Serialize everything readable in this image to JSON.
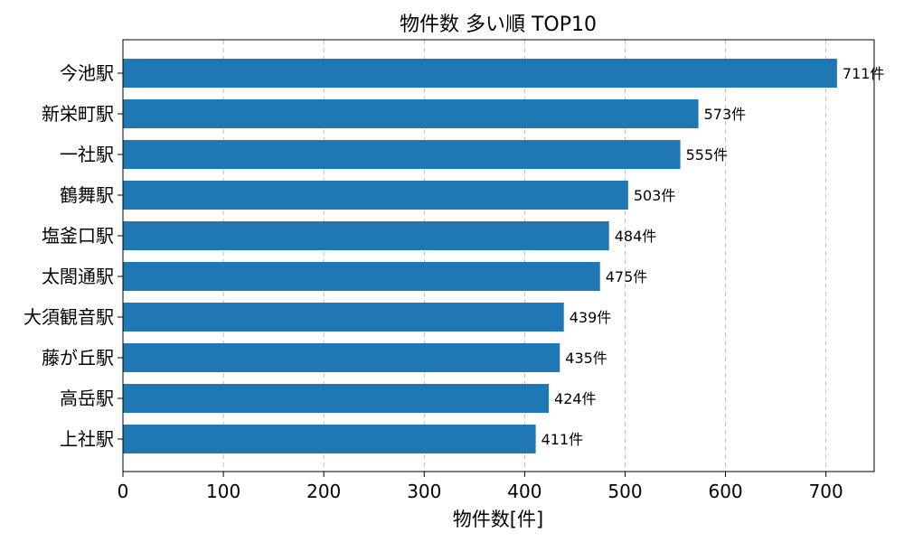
{
  "chart_data": {
    "type": "bar",
    "orientation": "horizontal",
    "title": "物件数 多い順 TOP10",
    "xlabel": "物件数[件]",
    "ylabel": "",
    "categories": [
      "今池駅",
      "新栄町駅",
      "一社駅",
      "鶴舞駅",
      "塩釜口駅",
      "太閤通駅",
      "大須観音駅",
      "藤が丘駅",
      "高岳駅",
      "上社駅"
    ],
    "values": [
      711,
      573,
      555,
      503,
      484,
      475,
      439,
      435,
      424,
      411
    ],
    "value_labels": [
      "711件",
      "573件",
      "555件",
      "503件",
      "484件",
      "475件",
      "439件",
      "435件",
      "424件",
      "411件"
    ],
    "xlim": [
      0,
      748
    ],
    "xticks": [
      0,
      100,
      200,
      300,
      400,
      500,
      600,
      700
    ],
    "xtick_labels": [
      "0",
      "100",
      "200",
      "300",
      "400",
      "500",
      "600",
      "700"
    ],
    "grid": "x-dashed",
    "bar_color": "#1f77b4"
  }
}
